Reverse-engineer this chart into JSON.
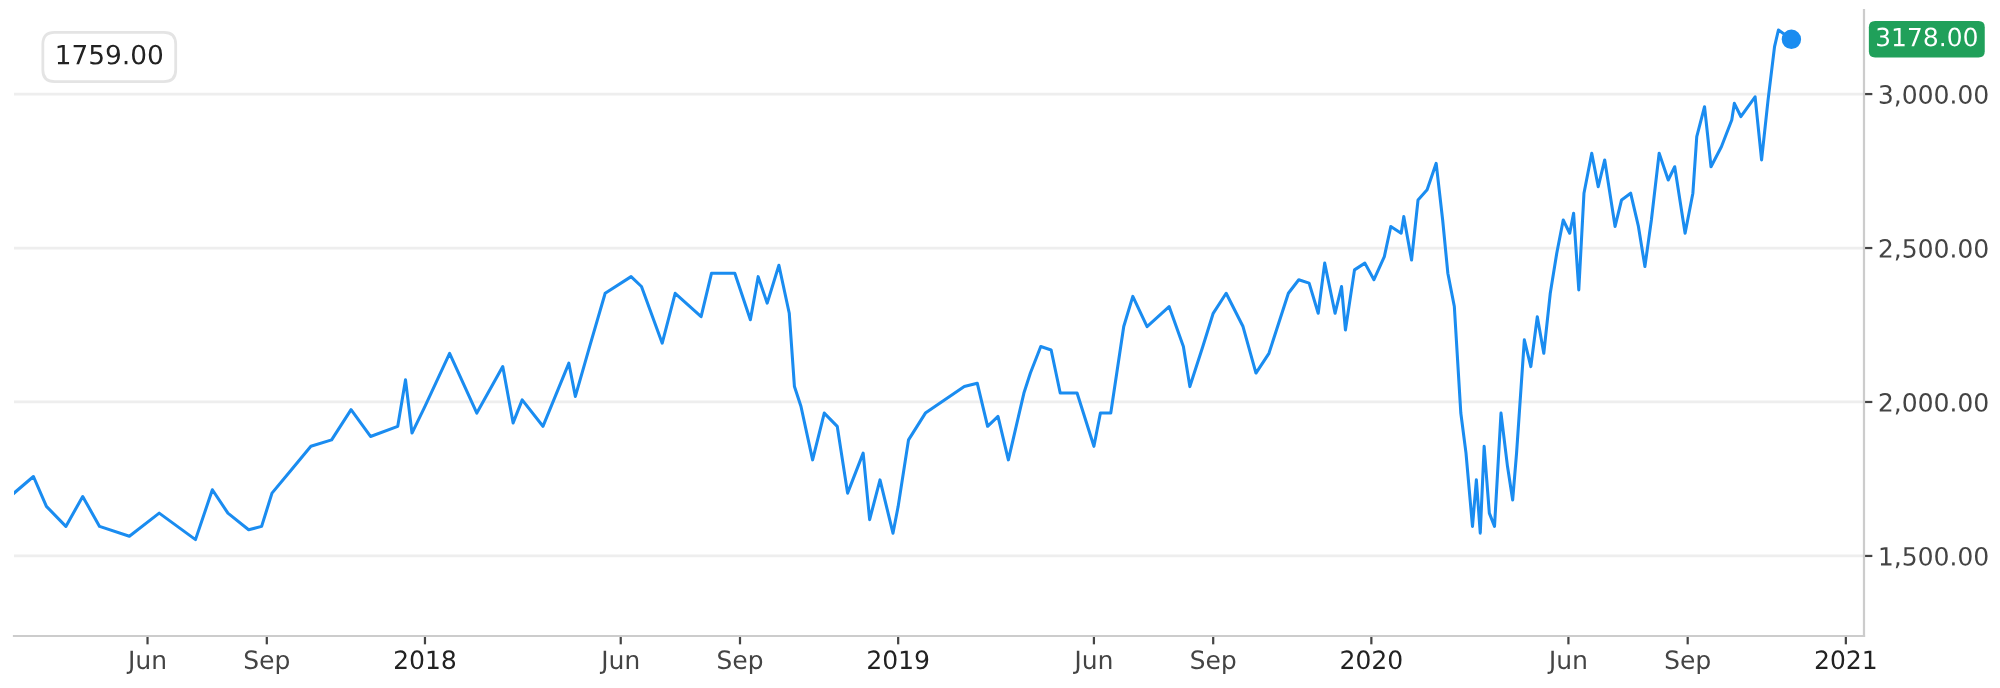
{
  "chart_data": {
    "type": "line",
    "x": [
      "2017-02-18",
      "2017-03-05",
      "2017-03-15",
      "2017-03-30",
      "2017-04-12",
      "2017-04-25",
      "2017-05-18",
      "2017-06-10",
      "2017-07-08",
      "2017-07-21",
      "2017-08-02",
      "2017-08-18",
      "2017-08-28",
      "2017-09-05",
      "2017-09-20",
      "2017-10-05",
      "2017-10-21",
      "2017-11-05",
      "2017-11-20",
      "2017-12-11",
      "2017-12-17",
      "2017-12-22",
      "2018-01-01",
      "2018-01-20",
      "2018-02-10",
      "2018-03-02",
      "2018-03-10",
      "2018-03-17",
      "2018-04-02",
      "2018-04-22",
      "2018-04-27",
      "2018-05-08",
      "2018-05-20",
      "2018-06-09",
      "2018-06-17",
      "2018-07-03",
      "2018-07-13",
      "2018-08-02",
      "2018-08-10",
      "2018-08-28",
      "2018-09-09",
      "2018-09-15",
      "2018-09-22",
      "2018-10-01",
      "2018-10-09",
      "2018-10-13",
      "2018-10-18",
      "2018-10-27",
      "2018-11-05",
      "2018-11-15",
      "2018-11-23",
      "2018-12-05",
      "2018-12-10",
      "2018-12-18",
      "2018-12-28",
      "2019-01-01",
      "2019-01-09",
      "2019-01-22",
      "2019-02-06",
      "2019-02-21",
      "2019-03-03",
      "2019-03-11",
      "2019-03-19",
      "2019-03-27",
      "2019-04-08",
      "2019-04-13",
      "2019-04-21",
      "2019-04-29",
      "2019-05-06",
      "2019-05-19",
      "2019-06-01",
      "2019-06-06",
      "2019-06-14",
      "2019-06-24",
      "2019-07-01",
      "2019-07-12",
      "2019-07-29",
      "2019-08-09",
      "2019-08-14",
      "2019-08-24",
      "2019-09-01",
      "2019-09-11",
      "2019-09-24",
      "2019-10-04",
      "2019-10-14",
      "2019-10-29",
      "2019-11-06",
      "2019-11-14",
      "2019-11-21",
      "2019-11-26",
      "2019-12-04",
      "2019-12-09",
      "2019-12-12",
      "2019-12-19",
      "2019-12-27",
      "2020-01-03",
      "2020-01-11",
      "2020-01-16",
      "2020-01-24",
      "2020-01-26",
      "2020-02-01",
      "2020-02-06",
      "2020-02-13",
      "2020-02-20",
      "2020-02-25",
      "2020-02-29",
      "2020-03-05",
      "2020-03-10",
      "2020-03-14",
      "2020-03-19",
      "2020-03-22",
      "2020-03-25",
      "2020-03-28",
      "2020-04-01",
      "2020-04-05",
      "2020-04-10",
      "2020-04-15",
      "2020-04-19",
      "2020-04-22",
      "2020-04-28",
      "2020-05-03",
      "2020-05-08",
      "2020-05-13",
      "2020-05-18",
      "2020-05-23",
      "2020-05-28",
      "2020-06-02",
      "2020-06-05",
      "2020-06-09",
      "2020-06-13",
      "2020-06-19",
      "2020-06-24",
      "2020-06-29",
      "2020-07-07",
      "2020-07-12",
      "2020-07-19",
      "2020-07-25",
      "2020-07-30",
      "2020-08-04",
      "2020-08-10",
      "2020-08-17",
      "2020-08-22",
      "2020-08-30",
      "2020-09-05",
      "2020-09-08",
      "2020-09-14",
      "2020-09-19",
      "2020-09-27",
      "2020-10-05",
      "2020-10-07",
      "2020-10-12",
      "2020-10-23",
      "2020-10-28",
      "2020-11-02",
      "2020-11-07",
      "2020-11-10",
      "2020-11-20"
    ],
    "series": [
      {
        "color": "#1a8cf0",
        "values": [
          1704,
          1758,
          1661,
          1596,
          1693,
          1596,
          1564,
          1639,
          1553,
          1715,
          1639,
          1585,
          1596,
          1704,
          1780,
          1856,
          1877,
          1975,
          1888,
          1921,
          2072,
          1899,
          1986,
          2158,
          1964,
          2115,
          1932,
          2007,
          1921,
          2126,
          2018,
          2180,
          2353,
          2407,
          2375,
          2191,
          2353,
          2277,
          2418,
          2418,
          2267,
          2407,
          2321,
          2444,
          2288,
          2050,
          1986,
          1812,
          1964,
          1921,
          1704,
          1834,
          1618,
          1747,
          1574,
          1661,
          1877,
          1964,
          2007,
          2050,
          2061,
          1921,
          1953,
          1812,
          2029,
          2094,
          2180,
          2169,
          2029,
          2029,
          1856,
          1964,
          1964,
          2245,
          2343,
          2245,
          2310,
          2180,
          2050,
          2180,
          2288,
          2353,
          2245,
          2094,
          2158,
          2353,
          2397,
          2386,
          2288,
          2451,
          2288,
          2375,
          2234,
          2429,
          2451,
          2397,
          2472,
          2570,
          2548,
          2602,
          2461,
          2656,
          2689,
          2775,
          2591,
          2418,
          2310,
          1964,
          1834,
          1596,
          1747,
          1574,
          1856,
          1639,
          1596,
          1964,
          1791,
          1682,
          1834,
          2202,
          2115,
          2277,
          2158,
          2353,
          2483,
          2591,
          2548,
          2613,
          2364,
          2678,
          2808,
          2699,
          2786,
          2570,
          2656,
          2678,
          2570,
          2440,
          2591,
          2808,
          2721,
          2764,
          2548,
          2678,
          2862,
          2959,
          2764,
          2829,
          2916,
          2970,
          2927,
          2991,
          2786,
          2981,
          3154,
          3208,
          3178
        ]
      }
    ],
    "xlim": [
      "2017-02-18",
      "2021-01-15"
    ],
    "xticks": [
      {
        "value": "2017-06-01",
        "label": "Jun"
      },
      {
        "value": "2017-09-01",
        "label": "Sep"
      },
      {
        "value": "2018-01-01",
        "label": "2018"
      },
      {
        "value": "2018-06-01",
        "label": "Jun"
      },
      {
        "value": "2018-09-01",
        "label": "Sep"
      },
      {
        "value": "2019-01-01",
        "label": "2019"
      },
      {
        "value": "2019-06-01",
        "label": "Jun"
      },
      {
        "value": "2019-09-01",
        "label": "Sep"
      },
      {
        "value": "2020-01-01",
        "label": "2020"
      },
      {
        "value": "2020-06-01",
        "label": "Jun"
      },
      {
        "value": "2020-09-01",
        "label": "Sep"
      },
      {
        "value": "2021-01-01",
        "label": "2021"
      }
    ],
    "ylim": [
      1240,
      3273
    ],
    "yticks": [
      {
        "value": 1500,
        "label": "1,500.00"
      },
      {
        "value": 2000,
        "label": "2,000.00"
      },
      {
        "value": 2500,
        "label": "2,500.00"
      },
      {
        "value": 3000,
        "label": "3,000.00"
      }
    ],
    "grid": "y",
    "annotations": [
      "1759.00",
      "3178.00"
    ]
  }
}
